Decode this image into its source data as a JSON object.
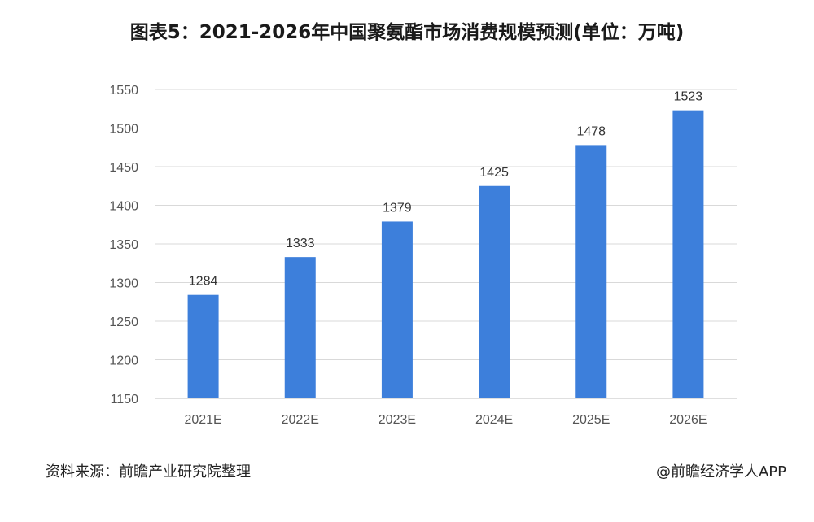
{
  "chart_data": {
    "type": "bar",
    "title": "图表5：2021-2026年中国聚氨酯市场消费规模预测(单位：万吨)",
    "categories": [
      "2021E",
      "2022E",
      "2023E",
      "2024E",
      "2025E",
      "2026E"
    ],
    "values": [
      1284,
      1333,
      1379,
      1425,
      1478,
      1523
    ],
    "ylim": [
      1150,
      1550
    ],
    "yticks": [
      1150,
      1200,
      1250,
      1300,
      1350,
      1400,
      1450,
      1500,
      1550
    ],
    "grid": true,
    "legend": "none",
    "bar_color": "#3d7fdb"
  },
  "footer": {
    "source": "资料来源：前瞻产业研究院整理",
    "credit": "@前瞻经济学人APP"
  }
}
